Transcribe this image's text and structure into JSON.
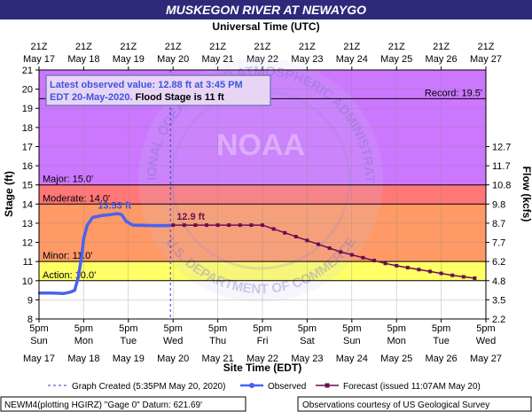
{
  "header": {
    "title": "MUSKEGON RIVER AT NEWAYGO",
    "top_axis_title": "Universal Time (UTC)"
  },
  "top_axis_ticks": [
    {
      "line1": "21Z",
      "line2": "May 17"
    },
    {
      "line1": "21Z",
      "line2": "May 18"
    },
    {
      "line1": "21Z",
      "line2": "May 19"
    },
    {
      "line1": "21Z",
      "line2": "May 20"
    },
    {
      "line1": "21Z",
      "line2": "May 21"
    },
    {
      "line1": "21Z",
      "line2": "May 22"
    },
    {
      "line1": "21Z",
      "line2": "May 23"
    },
    {
      "line1": "21Z",
      "line2": "May 24"
    },
    {
      "line1": "21Z",
      "line2": "May 25"
    },
    {
      "line1": "21Z",
      "line2": "May 26"
    },
    {
      "line1": "21Z",
      "line2": "May 27"
    }
  ],
  "bottom_axis_ticks": [
    {
      "time": "5pm",
      "day": "Sun",
      "date": "May 17"
    },
    {
      "time": "5pm",
      "day": "Mon",
      "date": "May 18"
    },
    {
      "time": "5pm",
      "day": "Tue",
      "date": "May 19"
    },
    {
      "time": "5pm",
      "day": "Wed",
      "date": "May 20"
    },
    {
      "time": "5pm",
      "day": "Thu",
      "date": "May 21"
    },
    {
      "time": "5pm",
      "day": "Fri",
      "date": "May 22"
    },
    {
      "time": "5pm",
      "day": "Sat",
      "date": "May 23"
    },
    {
      "time": "5pm",
      "day": "Sun",
      "date": "May 24"
    },
    {
      "time": "5pm",
      "day": "Mon",
      "date": "May 25"
    },
    {
      "time": "5pm",
      "day": "Tue",
      "date": "May 26"
    },
    {
      "time": "5pm",
      "day": "Wed",
      "date": "May 27"
    }
  ],
  "info_box": {
    "line1": "Latest observed value: 12.88 ft at 3:45 PM",
    "line2a": "EDT 20-May-2020.",
    "line2b": " Flood Stage is 11 ft"
  },
  "legend": {
    "graph_created": "Graph Created (5:35PM May 20, 2020)",
    "observed": "Observed",
    "forecast": "Forecast (issued 11:07AM May 20)"
  },
  "footer": {
    "left": "NEWM4(plotting HGIRZ) \"Gage 0\" Datum: 621.69'",
    "right": "Observations courtesy of US Geological Survey"
  },
  "watermark": {
    "top": "NATIONAL OCEANIC AND ATMOSPHERIC ADMINISTRATION",
    "bottom": "U.S. DEPARTMENT OF COMMERCE",
    "center": "NOAA"
  },
  "colors": {
    "observed": "#4a62ef",
    "forecast": "#6b0f52",
    "record_band": "#cc77ff",
    "major_band": "#ff7777",
    "moderate_band": "#ff9966",
    "minor_band": "#ffcc66",
    "action_band": "#ffff66",
    "title_bg": "#2d2a7a"
  },
  "chart_data": {
    "type": "line",
    "title": "MUSKEGON RIVER AT NEWAYGO",
    "xlabel": "Site Time (EDT)",
    "ylabel": "Stage (ft)",
    "y2label": "Flow (kcfs)",
    "x_top_label": "Universal Time (UTC)",
    "xlim_days": [
      0,
      10
    ],
    "x_origin": "5pm EDT May 17",
    "ylim": [
      8,
      21
    ],
    "yticks": [
      8,
      9,
      10,
      11,
      12,
      13,
      14,
      15,
      16,
      17,
      18,
      19,
      20,
      21
    ],
    "y2_ticks": [
      {
        "stage": 8.0,
        "label": "2.2"
      },
      {
        "stage": 9.0,
        "label": "3.5"
      },
      {
        "stage": 10.0,
        "label": "4.8"
      },
      {
        "stage": 11.0,
        "label": "6.2"
      },
      {
        "stage": 12.0,
        "label": "7.7"
      },
      {
        "stage": 13.0,
        "label": "8.7"
      },
      {
        "stage": 14.0,
        "label": "9.8"
      },
      {
        "stage": 15.0,
        "label": "10.8"
      },
      {
        "stage": 16.0,
        "label": "11.7"
      },
      {
        "stage": 17.0,
        "label": "12.7"
      }
    ],
    "stage_bands": [
      {
        "name": "action",
        "from": 10.0,
        "to": 11.0,
        "label": "Action: 10.0'"
      },
      {
        "name": "minor",
        "from": 11.0,
        "to": 14.0,
        "label": "Minor: 11.0'"
      },
      {
        "name": "moderate",
        "from": 14.0,
        "to": 15.0,
        "label": "Moderate: 14.0'"
      },
      {
        "name": "major",
        "from": 15.0,
        "to": 21.0,
        "label": "Major: 15.0'"
      }
    ],
    "record": {
      "value": 19.5,
      "label": "Record: 19.5'"
    },
    "graph_created_x": 2.94,
    "series": [
      {
        "name": "Observed",
        "points": [
          [
            0.0,
            9.35
          ],
          [
            0.3,
            9.35
          ],
          [
            0.55,
            9.33
          ],
          [
            0.7,
            9.4
          ],
          [
            0.8,
            9.5
          ],
          [
            0.88,
            10.2
          ],
          [
            0.95,
            11.2
          ],
          [
            1.0,
            12.2
          ],
          [
            1.08,
            12.9
          ],
          [
            1.2,
            13.3
          ],
          [
            1.4,
            13.4
          ],
          [
            1.6,
            13.45
          ],
          [
            1.75,
            13.5
          ],
          [
            1.85,
            13.45
          ],
          [
            1.95,
            13.1
          ],
          [
            2.1,
            12.9
          ],
          [
            2.4,
            12.88
          ],
          [
            2.7,
            12.87
          ],
          [
            2.94,
            12.88
          ]
        ],
        "peak_label": {
          "x": 1.75,
          "y": 13.53,
          "text": "13.53 ft"
        }
      },
      {
        "name": "Forecast",
        "points": [
          [
            3.0,
            12.9
          ],
          [
            3.25,
            12.9
          ],
          [
            3.5,
            12.9
          ],
          [
            3.75,
            12.9
          ],
          [
            4.0,
            12.9
          ],
          [
            4.25,
            12.9
          ],
          [
            4.5,
            12.9
          ],
          [
            4.75,
            12.9
          ],
          [
            5.0,
            12.9
          ],
          [
            5.25,
            12.7
          ],
          [
            5.5,
            12.5
          ],
          [
            5.75,
            12.3
          ],
          [
            6.0,
            12.1
          ],
          [
            6.25,
            11.9
          ],
          [
            6.5,
            11.7
          ],
          [
            6.75,
            11.5
          ],
          [
            7.0,
            11.35
          ],
          [
            7.25,
            11.2
          ],
          [
            7.5,
            11.05
          ],
          [
            7.75,
            10.9
          ],
          [
            8.0,
            10.78
          ],
          [
            8.25,
            10.68
          ],
          [
            8.5,
            10.58
          ],
          [
            8.75,
            10.48
          ],
          [
            9.0,
            10.38
          ],
          [
            9.25,
            10.28
          ],
          [
            9.5,
            10.2
          ],
          [
            9.75,
            10.13
          ]
        ],
        "start_label": {
          "x": 3.0,
          "y": 12.9,
          "text": "12.9 ft"
        }
      }
    ]
  }
}
